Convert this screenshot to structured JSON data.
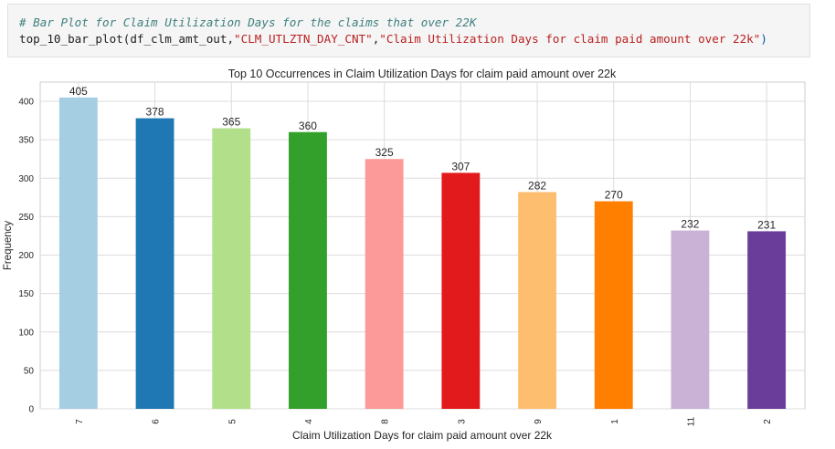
{
  "code_cell": {
    "comment": "# Bar Plot for Claim Utilization Days for the claims that over 22K",
    "fn_call": "top_10_bar_plot(df_clm_amt_out,",
    "arg1": "\"CLM_UTLZTN_DAY_CNT\"",
    "comma": ",",
    "arg2": "\"Claim Utilization Days for claim paid amount over 22k\"",
    "close": ")"
  },
  "chart_data": {
    "type": "bar",
    "title": "Top 10 Occurrences in Claim Utilization Days for claim paid amount over 22k",
    "xlabel": "Claim Utilization Days for claim paid amount over 22k",
    "ylabel": "Frequency",
    "categories": [
      "7",
      "6",
      "5",
      "4",
      "8",
      "3",
      "9",
      "1",
      "11",
      "2"
    ],
    "values": [
      405,
      378,
      365,
      360,
      325,
      307,
      282,
      270,
      232,
      231
    ],
    "data_labels": [
      "405",
      "378",
      "365",
      "360",
      "325",
      "307",
      "282",
      "270",
      "232",
      "231"
    ],
    "colors": [
      "#a6cee3",
      "#1f78b4",
      "#b2df8a",
      "#33a02c",
      "#fb9a99",
      "#e31a1c",
      "#fdbf6f",
      "#ff7f00",
      "#cab2d6",
      "#6a3d9a"
    ],
    "ylim": [
      0,
      425
    ],
    "yticks": [
      0,
      50,
      100,
      150,
      200,
      250,
      300,
      350,
      400
    ],
    "ytick_labels": [
      "0",
      "50",
      "100",
      "150",
      "200",
      "250",
      "300",
      "350",
      "400"
    ],
    "grid": true,
    "legend": "none"
  }
}
